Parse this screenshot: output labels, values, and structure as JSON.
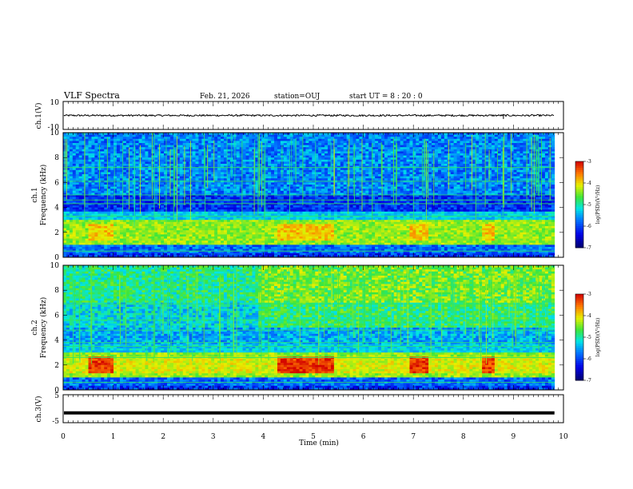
{
  "header": {
    "title": "VLF Spectra",
    "date": "Feb. 21, 2026",
    "station": "station=OUJ",
    "start": "start  UT =  8 : 20 : 0"
  },
  "chart_data": [
    {
      "type": "line",
      "id": "ch1-waveform",
      "ylabel": "ch.1(V)",
      "ylim": [
        -10,
        10
      ],
      "yticks": [
        "10",
        "-10"
      ],
      "baseline": 0,
      "spike_x": 8.8
    },
    {
      "type": "heatmap",
      "id": "ch1-spectrogram",
      "ylabel_top": "ch.1",
      "ylabel": "Frequency (kHz)",
      "ylim": [
        0,
        10
      ],
      "yticks": [
        "0",
        "2",
        "4",
        "6",
        "8",
        "10"
      ],
      "colorbar": {
        "label": "log(PSD)(V²/Hz)",
        "ticks": [
          "-3",
          "-4",
          "-5",
          "-6",
          "-7"
        ],
        "range": [
          -7,
          -3
        ]
      }
    },
    {
      "type": "heatmap",
      "id": "ch2-spectrogram",
      "ylabel_top": "ch.2",
      "ylabel": "Frequency (kHz)",
      "ylim": [
        0,
        10
      ],
      "yticks": [
        "0",
        "2",
        "4",
        "6",
        "8",
        "10"
      ],
      "colorbar": {
        "label": "log(PSD)(V²/Hz)",
        "ticks": [
          "-3",
          "-4",
          "-5",
          "-6",
          "-7"
        ],
        "range": [
          -7,
          -3
        ]
      }
    },
    {
      "type": "line",
      "id": "ch3-waveform",
      "ylabel": "ch.3(V)",
      "ylim": [
        -5,
        5
      ],
      "yticks": [
        "5",
        "-5"
      ],
      "baseline": -1.5
    }
  ],
  "xaxis": {
    "label": "Time (min)",
    "xlim": [
      0,
      10
    ],
    "ticks": [
      "0",
      "1",
      "2",
      "3",
      "4",
      "5",
      "6",
      "7",
      "8",
      "9",
      "10"
    ]
  }
}
